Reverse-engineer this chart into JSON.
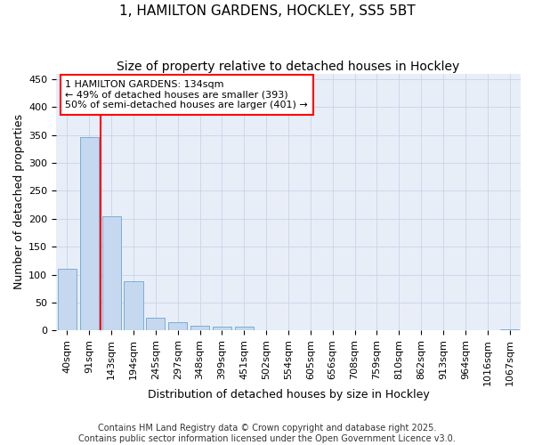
{
  "title1": "1, HAMILTON GARDENS, HOCKLEY, SS5 5BT",
  "title2": "Size of property relative to detached houses in Hockley",
  "xlabel": "Distribution of detached houses by size in Hockley",
  "ylabel": "Number of detached properties",
  "categories": [
    "40sqm",
    "91sqm",
    "143sqm",
    "194sqm",
    "245sqm",
    "297sqm",
    "348sqm",
    "399sqm",
    "451sqm",
    "502sqm",
    "554sqm",
    "605sqm",
    "656sqm",
    "708sqm",
    "759sqm",
    "810sqm",
    "862sqm",
    "913sqm",
    "964sqm",
    "1016sqm",
    "1067sqm"
  ],
  "values": [
    110,
    347,
    204,
    88,
    22,
    15,
    8,
    7,
    6,
    0,
    0,
    0,
    0,
    0,
    0,
    0,
    0,
    0,
    0,
    0,
    2
  ],
  "bar_color": "#c5d8ef",
  "bar_edgecolor": "#7aaed6",
  "vline_x": 1.5,
  "vline_color": "red",
  "annotation_line1": "1 HAMILTON GARDENS: 134sqm",
  "annotation_line2": "← 49% of detached houses are smaller (393)",
  "annotation_line3": "50% of semi-detached houses are larger (401) →",
  "annotation_box_color": "white",
  "annotation_box_edgecolor": "red",
  "ylim": [
    0,
    460
  ],
  "yticks": [
    0,
    50,
    100,
    150,
    200,
    250,
    300,
    350,
    400,
    450
  ],
  "grid_color": "#c8d4e8",
  "bg_color": "#e8eef8",
  "footer": "Contains HM Land Registry data © Crown copyright and database right 2025.\nContains public sector information licensed under the Open Government Licence v3.0.",
  "title1_fontsize": 11,
  "title2_fontsize": 10,
  "axis_label_fontsize": 9,
  "tick_fontsize": 8,
  "annotation_fontsize": 8,
  "footer_fontsize": 7
}
